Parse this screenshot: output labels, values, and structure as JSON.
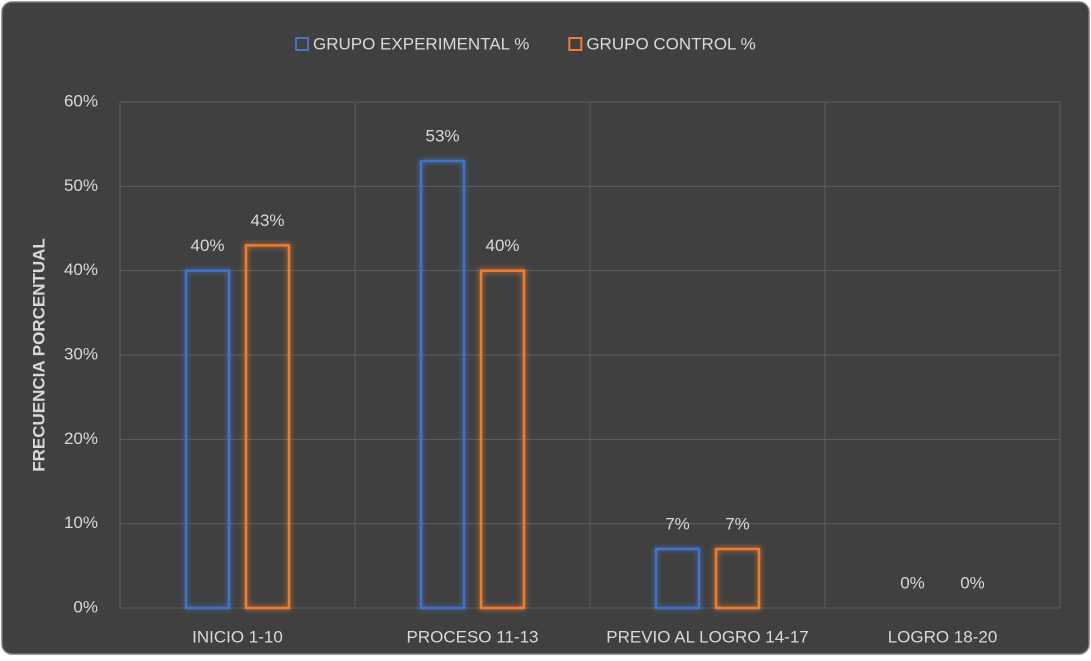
{
  "chart_data": {
    "type": "bar",
    "y_axis_label": "FRECUENCIA PORCENTUAL",
    "categories": [
      "INICIO 1-10",
      "PROCESO 11-13",
      "PREVIO AL LOGRO 14-17",
      "LOGRO 18-20"
    ],
    "series": [
      {
        "name": "GRUPO EXPERIMENTAL %",
        "color": "#4472c4",
        "values": [
          40,
          53,
          7,
          0
        ],
        "value_labels": [
          "40%",
          "53%",
          "7%",
          "0%"
        ]
      },
      {
        "name": "GRUPO CONTROL %",
        "color": "#ed7d31",
        "values": [
          43,
          40,
          7,
          0
        ],
        "value_labels": [
          "43%",
          "40%",
          "7%",
          "0%"
        ]
      }
    ],
    "ylim": [
      0,
      60
    ],
    "yticks": [
      {
        "value": 0,
        "label": "0%"
      },
      {
        "value": 10,
        "label": "10%"
      },
      {
        "value": 20,
        "label": "20%"
      },
      {
        "value": 30,
        "label": "30%"
      },
      {
        "value": 40,
        "label": "40%"
      },
      {
        "value": 50,
        "label": "50%"
      },
      {
        "value": 60,
        "label": "60%"
      }
    ],
    "grid": true,
    "legend": "top"
  }
}
